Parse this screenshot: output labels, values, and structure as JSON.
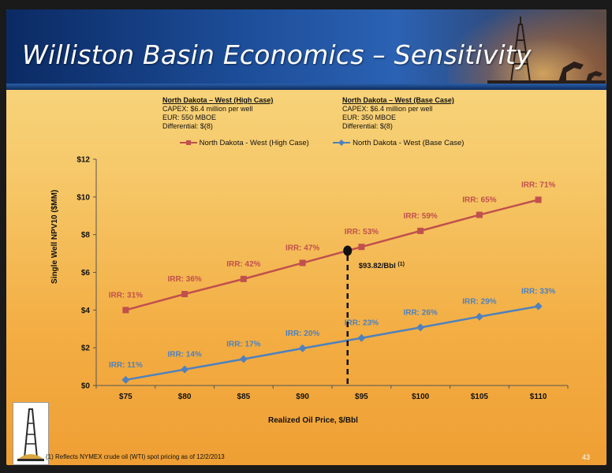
{
  "slide": {
    "title": "Williston Basin Economics – Sensitivity",
    "page_number": "43",
    "footnote": "(1) Reflects NYMEX crude oil (WTI) spot pricing as of 12/2/2013"
  },
  "cases": {
    "high": {
      "heading": "North Dakota – West (High Case)",
      "capex": "CAPEX: $6.4 million per well",
      "eur": "EUR: 550 MBOE",
      "differential": "Differential: $(8)"
    },
    "base": {
      "heading": "North Dakota – West (Base Case)",
      "capex": "CAPEX: $6.4 million per well",
      "eur": "EUR: 350 MBOE",
      "differential": "Differential: $(8)"
    }
  },
  "colors": {
    "high": "#c0504d",
    "base": "#4f81bd"
  },
  "chart_data": {
    "type": "line",
    "xlabel": "Realized Oil Price, $/Bbl",
    "ylabel": "Single Well NPV10 ($MM)",
    "x": [
      75,
      80,
      85,
      90,
      95,
      100,
      105,
      110
    ],
    "x_tick_labels": [
      "$75",
      "$80",
      "$85",
      "$90",
      "$95",
      "$100",
      "$105",
      "$110"
    ],
    "ylim": [
      0,
      12
    ],
    "y_ticks": [
      0,
      2,
      4,
      6,
      8,
      10,
      12
    ],
    "y_tick_labels": [
      "$0",
      "$2",
      "$4",
      "$6",
      "$8",
      "$10",
      "$12"
    ],
    "legend_position": "top",
    "grid": false,
    "series": [
      {
        "name": "North Dakota - West (High Case)",
        "values": [
          4.0,
          4.85,
          5.65,
          6.5,
          7.35,
          8.2,
          9.05,
          9.85
        ],
        "irr_labels": [
          "IRR: 31%",
          "IRR: 36%",
          "IRR: 42%",
          "IRR: 47%",
          "IRR: 53%",
          "IRR: 59%",
          "IRR: 65%",
          "IRR: 71%"
        ]
      },
      {
        "name": "North Dakota - West (Base Case)",
        "values": [
          0.3,
          0.85,
          1.4,
          1.97,
          2.52,
          3.08,
          3.65,
          4.2
        ],
        "irr_labels": [
          "IRR: 11%",
          "IRR: 14%",
          "IRR: 17%",
          "IRR: 20%",
          "IRR: 23%",
          "IRR: 26%",
          "IRR: 29%",
          "IRR: 33%"
        ]
      }
    ],
    "annotation": {
      "x": 93.82,
      "y": 7.15,
      "label": "$93.82/Bbl",
      "superscript": "(1)"
    }
  }
}
